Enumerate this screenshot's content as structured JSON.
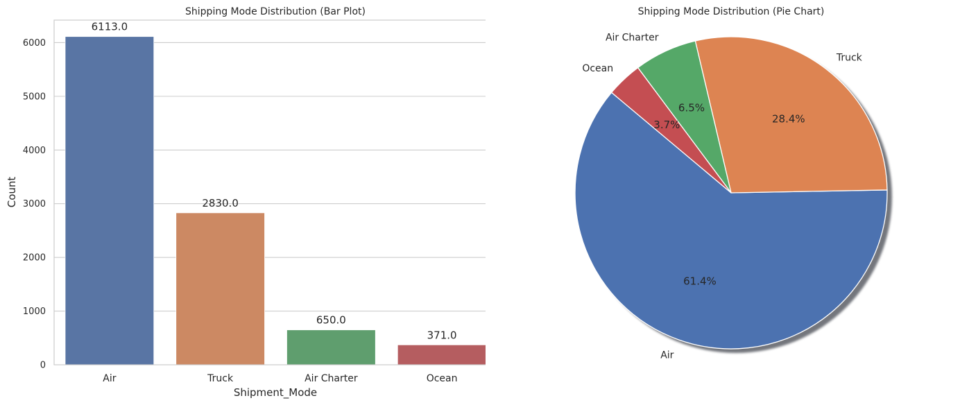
{
  "chart_data": [
    {
      "type": "bar",
      "title": "Shipping Mode Distribution (Bar Plot)",
      "xlabel": "Shipment_Mode",
      "ylabel": "Count",
      "categories": [
        "Air",
        "Truck",
        "Air Charter",
        "Ocean"
      ],
      "values": [
        6113,
        2830,
        650,
        371
      ],
      "data_labels": [
        "6113.0",
        "2830.0",
        "650.0",
        "371.0"
      ],
      "colors": [
        "#5975a4",
        "#cc8963",
        "#5f9e6e",
        "#b55d60"
      ],
      "yticks": [
        0,
        1000,
        2000,
        3000,
        4000,
        5000,
        6000
      ],
      "ylim": [
        0,
        6419
      ],
      "grid": true
    },
    {
      "type": "pie",
      "title": "Shipping Mode Distribution (Pie Chart)",
      "labels": [
        "Air",
        "Truck",
        "Air Charter",
        "Ocean"
      ],
      "values": [
        61.4,
        28.4,
        6.5,
        3.7
      ],
      "pct_labels": [
        "61.4%",
        "28.4%",
        "6.5%",
        "3.7%"
      ],
      "colors": [
        "#4c72b0",
        "#dd8452",
        "#55a868",
        "#c44e52"
      ],
      "start_angle_deg": 140,
      "shadow": true
    }
  ]
}
